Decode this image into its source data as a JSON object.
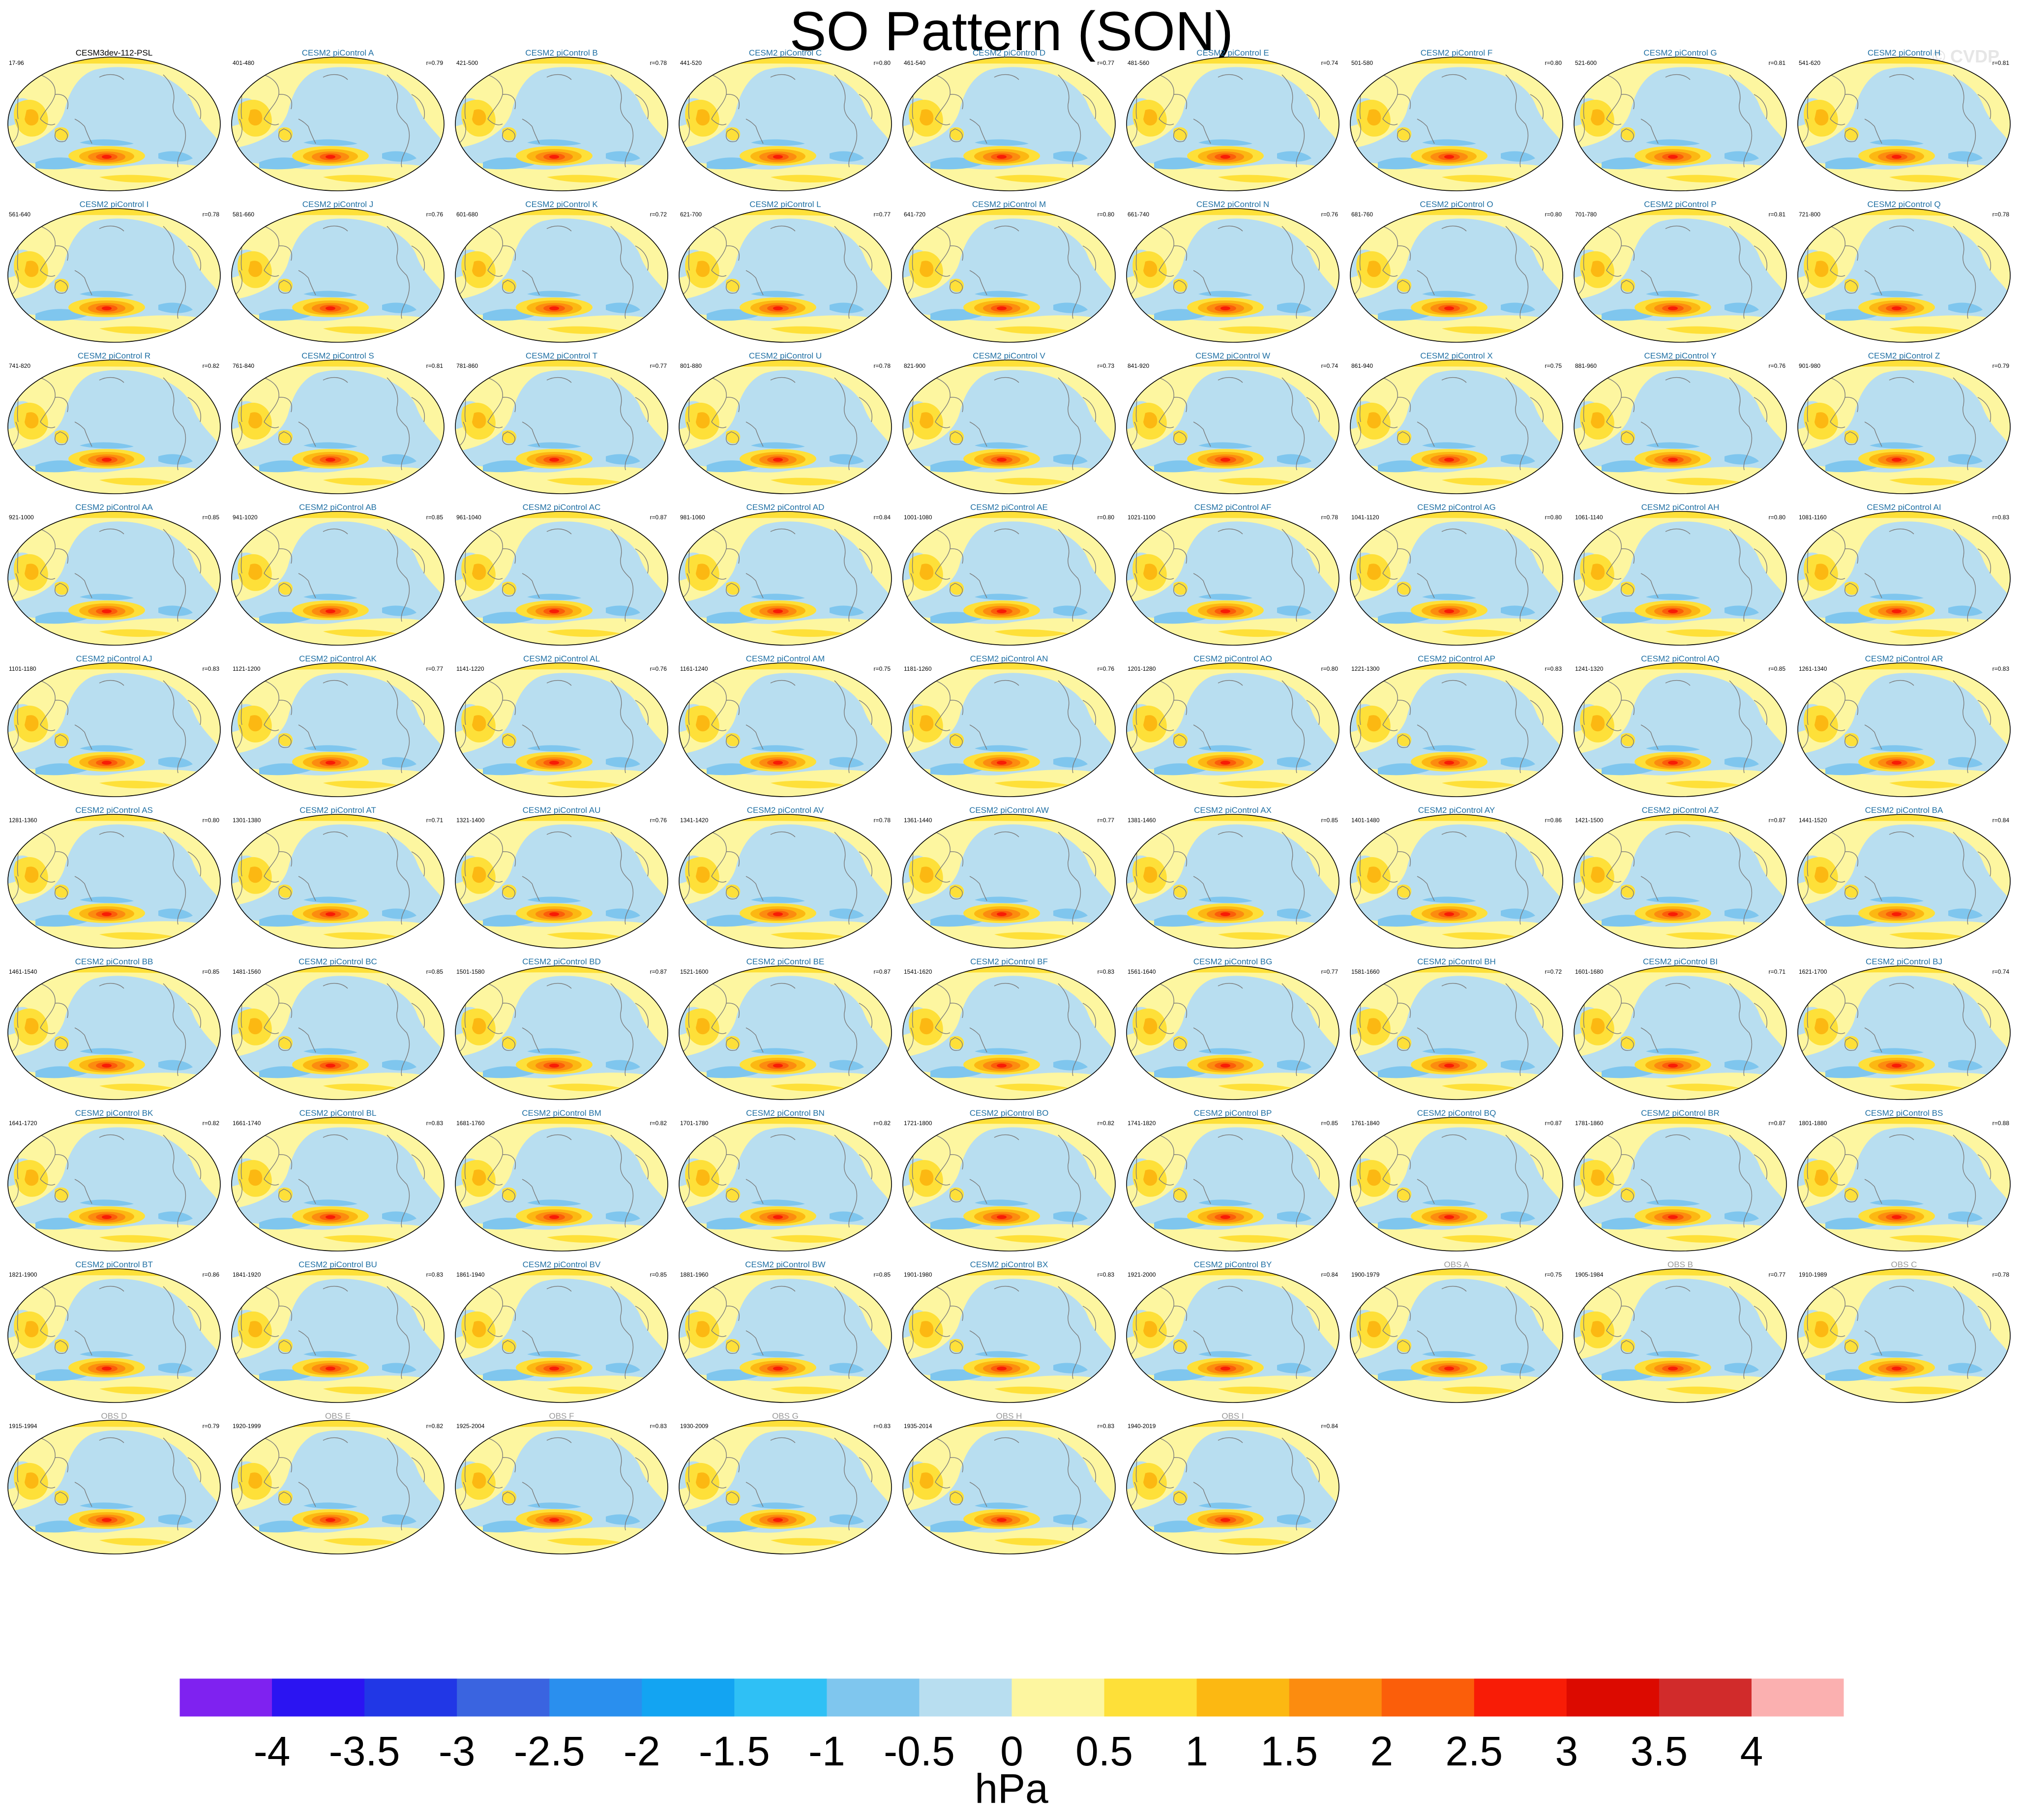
{
  "figure": {
    "title": "SO Pattern (SON)",
    "watermark": "© CVDP"
  },
  "chart_data": {
    "type": "heatmap",
    "title": "SO Pattern (SON)",
    "variable": "PSL",
    "season": "SON",
    "projection": "global map (Robinson-style ellipse), Pacific-centred",
    "colorbar": {
      "units": "hPa",
      "levels": [
        -4,
        -3.5,
        -3,
        -2.5,
        -2,
        -1.5,
        -1,
        -0.5,
        0,
        0.5,
        1,
        1.5,
        2,
        2.5,
        3,
        3.5,
        4
      ],
      "level_labels": [
        "-4",
        "-3.5",
        "-3",
        "-2.5",
        "-2",
        "-1.5",
        "-1",
        "-0.5",
        "0",
        "0.5",
        "1",
        "1.5",
        "2",
        "2.5",
        "3",
        "3.5",
        "4"
      ],
      "colors": [
        "#7f22f0",
        "#2b14f2",
        "#2137e6",
        "#3a64e0",
        "#2a8fee",
        "#13a4f2",
        "#2fc0f5",
        "#7fc6ee",
        "#b8def0",
        "#fdf6a0",
        "#fee039",
        "#fcb812",
        "#fc8c0f",
        "#fb5e0a",
        "#f81c06",
        "#dc0a00",
        "#d12b2b",
        "#fbb0b0"
      ]
    },
    "panels": [
      {
        "title": "CESM3dev-112-PSL",
        "range": "17-96",
        "r": "",
        "kind": "ref"
      },
      {
        "title": "CESM2 piControl A",
        "range": "401-480",
        "r": "r=0.79",
        "kind": "model"
      },
      {
        "title": "CESM2 piControl B",
        "range": "421-500",
        "r": "r=0.78",
        "kind": "model"
      },
      {
        "title": "CESM2 piControl C",
        "range": "441-520",
        "r": "r=0.80",
        "kind": "model"
      },
      {
        "title": "CESM2 piControl D",
        "range": "461-540",
        "r": "r=0.77",
        "kind": "model"
      },
      {
        "title": "CESM2 piControl E",
        "range": "481-560",
        "r": "r=0.74",
        "kind": "model"
      },
      {
        "title": "CESM2 piControl F",
        "range": "501-580",
        "r": "r=0.80",
        "kind": "model"
      },
      {
        "title": "CESM2 piControl G",
        "range": "521-600",
        "r": "r=0.81",
        "kind": "model"
      },
      {
        "title": "CESM2 piControl H",
        "range": "541-620",
        "r": "r=0.81",
        "kind": "model"
      },
      {
        "title": "CESM2 piControl I",
        "range": "561-640",
        "r": "r=0.78",
        "kind": "model"
      },
      {
        "title": "CESM2 piControl J",
        "range": "581-660",
        "r": "r=0.76",
        "kind": "model"
      },
      {
        "title": "CESM2 piControl K",
        "range": "601-680",
        "r": "r=0.72",
        "kind": "model"
      },
      {
        "title": "CESM2 piControl L",
        "range": "621-700",
        "r": "r=0.77",
        "kind": "model"
      },
      {
        "title": "CESM2 piControl M",
        "range": "641-720",
        "r": "r=0.80",
        "kind": "model"
      },
      {
        "title": "CESM2 piControl N",
        "range": "661-740",
        "r": "r=0.76",
        "kind": "model"
      },
      {
        "title": "CESM2 piControl O",
        "range": "681-760",
        "r": "r=0.80",
        "kind": "model"
      },
      {
        "title": "CESM2 piControl P",
        "range": "701-780",
        "r": "r=0.81",
        "kind": "model"
      },
      {
        "title": "CESM2 piControl Q",
        "range": "721-800",
        "r": "r=0.78",
        "kind": "model"
      },
      {
        "title": "CESM2 piControl R",
        "range": "741-820",
        "r": "r=0.82",
        "kind": "model"
      },
      {
        "title": "CESM2 piControl S",
        "range": "761-840",
        "r": "r=0.81",
        "kind": "model"
      },
      {
        "title": "CESM2 piControl T",
        "range": "781-860",
        "r": "r=0.77",
        "kind": "model"
      },
      {
        "title": "CESM2 piControl U",
        "range": "801-880",
        "r": "r=0.78",
        "kind": "model"
      },
      {
        "title": "CESM2 piControl V",
        "range": "821-900",
        "r": "r=0.73",
        "kind": "model"
      },
      {
        "title": "CESM2 piControl W",
        "range": "841-920",
        "r": "r=0.74",
        "kind": "model"
      },
      {
        "title": "CESM2 piControl X",
        "range": "861-940",
        "r": "r=0.75",
        "kind": "model"
      },
      {
        "title": "CESM2 piControl Y",
        "range": "881-960",
        "r": "r=0.76",
        "kind": "model"
      },
      {
        "title": "CESM2 piControl Z",
        "range": "901-980",
        "r": "r=0.79",
        "kind": "model"
      },
      {
        "title": "CESM2 piControl AA",
        "range": "921-1000",
        "r": "r=0.85",
        "kind": "model"
      },
      {
        "title": "CESM2 piControl AB",
        "range": "941-1020",
        "r": "r=0.85",
        "kind": "model"
      },
      {
        "title": "CESM2 piControl AC",
        "range": "961-1040",
        "r": "r=0.87",
        "kind": "model"
      },
      {
        "title": "CESM2 piControl AD",
        "range": "981-1060",
        "r": "r=0.84",
        "kind": "model"
      },
      {
        "title": "CESM2 piControl AE",
        "range": "1001-1080",
        "r": "r=0.80",
        "kind": "model"
      },
      {
        "title": "CESM2 piControl AF",
        "range": "1021-1100",
        "r": "r=0.78",
        "kind": "model"
      },
      {
        "title": "CESM2 piControl AG",
        "range": "1041-1120",
        "r": "r=0.80",
        "kind": "model"
      },
      {
        "title": "CESM2 piControl AH",
        "range": "1061-1140",
        "r": "r=0.80",
        "kind": "model"
      },
      {
        "title": "CESM2 piControl AI",
        "range": "1081-1160",
        "r": "r=0.83",
        "kind": "model"
      },
      {
        "title": "CESM2 piControl AJ",
        "range": "1101-1180",
        "r": "r=0.83",
        "kind": "model"
      },
      {
        "title": "CESM2 piControl AK",
        "range": "1121-1200",
        "r": "r=0.77",
        "kind": "model"
      },
      {
        "title": "CESM2 piControl AL",
        "range": "1141-1220",
        "r": "r=0.76",
        "kind": "model"
      },
      {
        "title": "CESM2 piControl AM",
        "range": "1161-1240",
        "r": "r=0.75",
        "kind": "model"
      },
      {
        "title": "CESM2 piControl AN",
        "range": "1181-1260",
        "r": "r=0.76",
        "kind": "model"
      },
      {
        "title": "CESM2 piControl AO",
        "range": "1201-1280",
        "r": "r=0.80",
        "kind": "model"
      },
      {
        "title": "CESM2 piControl AP",
        "range": "1221-1300",
        "r": "r=0.83",
        "kind": "model"
      },
      {
        "title": "CESM2 piControl AQ",
        "range": "1241-1320",
        "r": "r=0.85",
        "kind": "model"
      },
      {
        "title": "CESM2 piControl AR",
        "range": "1261-1340",
        "r": "r=0.83",
        "kind": "model"
      },
      {
        "title": "CESM2 piControl AS",
        "range": "1281-1360",
        "r": "r=0.80",
        "kind": "model"
      },
      {
        "title": "CESM2 piControl AT",
        "range": "1301-1380",
        "r": "r=0.71",
        "kind": "model"
      },
      {
        "title": "CESM2 piControl AU",
        "range": "1321-1400",
        "r": "r=0.76",
        "kind": "model"
      },
      {
        "title": "CESM2 piControl AV",
        "range": "1341-1420",
        "r": "r=0.78",
        "kind": "model"
      },
      {
        "title": "CESM2 piControl AW",
        "range": "1361-1440",
        "r": "r=0.77",
        "kind": "model"
      },
      {
        "title": "CESM2 piControl AX",
        "range": "1381-1460",
        "r": "r=0.85",
        "kind": "model"
      },
      {
        "title": "CESM2 piControl AY",
        "range": "1401-1480",
        "r": "r=0.86",
        "kind": "model"
      },
      {
        "title": "CESM2 piControl AZ",
        "range": "1421-1500",
        "r": "r=0.87",
        "kind": "model"
      },
      {
        "title": "CESM2 piControl BA",
        "range": "1441-1520",
        "r": "r=0.84",
        "kind": "model"
      },
      {
        "title": "CESM2 piControl BB",
        "range": "1461-1540",
        "r": "r=0.85",
        "kind": "model"
      },
      {
        "title": "CESM2 piControl BC",
        "range": "1481-1560",
        "r": "r=0.85",
        "kind": "model"
      },
      {
        "title": "CESM2 piControl BD",
        "range": "1501-1580",
        "r": "r=0.87",
        "kind": "model"
      },
      {
        "title": "CESM2 piControl BE",
        "range": "1521-1600",
        "r": "r=0.87",
        "kind": "model"
      },
      {
        "title": "CESM2 piControl BF",
        "range": "1541-1620",
        "r": "r=0.83",
        "kind": "model"
      },
      {
        "title": "CESM2 piControl BG",
        "range": "1561-1640",
        "r": "r=0.77",
        "kind": "model"
      },
      {
        "title": "CESM2 piControl BH",
        "range": "1581-1660",
        "r": "r=0.72",
        "kind": "model"
      },
      {
        "title": "CESM2 piControl BI",
        "range": "1601-1680",
        "r": "r=0.71",
        "kind": "model"
      },
      {
        "title": "CESM2 piControl BJ",
        "range": "1621-1700",
        "r": "r=0.74",
        "kind": "model"
      },
      {
        "title": "CESM2 piControl BK",
        "range": "1641-1720",
        "r": "r=0.82",
        "kind": "model"
      },
      {
        "title": "CESM2 piControl BL",
        "range": "1661-1740",
        "r": "r=0.83",
        "kind": "model"
      },
      {
        "title": "CESM2 piControl BM",
        "range": "1681-1760",
        "r": "r=0.82",
        "kind": "model"
      },
      {
        "title": "CESM2 piControl BN",
        "range": "1701-1780",
        "r": "r=0.82",
        "kind": "model"
      },
      {
        "title": "CESM2 piControl BO",
        "range": "1721-1800",
        "r": "r=0.82",
        "kind": "model"
      },
      {
        "title": "CESM2 piControl BP",
        "range": "1741-1820",
        "r": "r=0.85",
        "kind": "model"
      },
      {
        "title": "CESM2 piControl BQ",
        "range": "1761-1840",
        "r": "r=0.87",
        "kind": "model"
      },
      {
        "title": "CESM2 piControl BR",
        "range": "1781-1860",
        "r": "r=0.87",
        "kind": "model"
      },
      {
        "title": "CESM2 piControl BS",
        "range": "1801-1880",
        "r": "r=0.88",
        "kind": "model"
      },
      {
        "title": "CESM2 piControl BT",
        "range": "1821-1900",
        "r": "r=0.86",
        "kind": "model"
      },
      {
        "title": "CESM2 piControl BU",
        "range": "1841-1920",
        "r": "r=0.83",
        "kind": "model"
      },
      {
        "title": "CESM2 piControl BV",
        "range": "1861-1940",
        "r": "r=0.85",
        "kind": "model"
      },
      {
        "title": "CESM2 piControl BW",
        "range": "1881-1960",
        "r": "r=0.85",
        "kind": "model"
      },
      {
        "title": "CESM2 piControl BX",
        "range": "1901-1980",
        "r": "r=0.83",
        "kind": "model"
      },
      {
        "title": "CESM2 piControl BY",
        "range": "1921-2000",
        "r": "r=0.84",
        "kind": "model"
      },
      {
        "title": "OBS A",
        "range": "1900-1979",
        "r": "r=0.75",
        "kind": "obs"
      },
      {
        "title": "OBS B",
        "range": "1905-1984",
        "r": "r=0.77",
        "kind": "obs"
      },
      {
        "title": "OBS C",
        "range": "1910-1989",
        "r": "r=0.78",
        "kind": "obs"
      },
      {
        "title": "OBS D",
        "range": "1915-1994",
        "r": "r=0.79",
        "kind": "obs"
      },
      {
        "title": "OBS E",
        "range": "1920-1999",
        "r": "r=0.82",
        "kind": "obs"
      },
      {
        "title": "OBS F",
        "range": "1925-2004",
        "r": "r=0.83",
        "kind": "obs"
      },
      {
        "title": "OBS G",
        "range": "1930-2009",
        "r": "r=0.83",
        "kind": "obs"
      },
      {
        "title": "OBS H",
        "range": "1935-2014",
        "r": "r=0.83",
        "kind": "obs"
      },
      {
        "title": "OBS I",
        "range": "1940-2019",
        "r": "r=0.84",
        "kind": "obs"
      }
    ]
  }
}
